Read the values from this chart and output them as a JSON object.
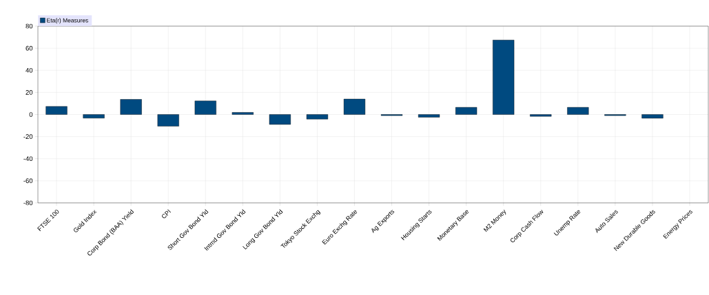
{
  "chart_data": {
    "type": "bar",
    "categories": [
      "FTSE 100",
      "Gold Index",
      "Corp Bond (BAA) Yield",
      "CPI",
      "Short Gov Bond Yld",
      "Intmd Gov Bond Yld",
      "Long Gov Bond Yld",
      "Tokyo Stock Exchg",
      "Euro Exchg Rate",
      "Ag Exports",
      "Housing Starts",
      "Monetary Base",
      "M2 Money",
      "Corp Cash Flow",
      "Unemp Rate",
      "Auto Sales",
      "New Durable Goods",
      "Energy Prices"
    ],
    "series": [
      {
        "name": "Eta(r) Measures",
        "color": "#004a80",
        "values": [
          7.3,
          -3.3,
          13.7,
          -10.6,
          12.3,
          1.9,
          -9,
          -4.2,
          14,
          -1,
          -2.5,
          6.5,
          67.4,
          -1.7,
          6.5,
          -1,
          -3.4,
          null
        ]
      }
    ],
    "ylim": [
      -80,
      80
    ],
    "yticks": [
      -80,
      -60,
      -40,
      -20,
      0,
      20,
      40,
      60,
      80
    ],
    "grid": true,
    "legend": "top left"
  }
}
